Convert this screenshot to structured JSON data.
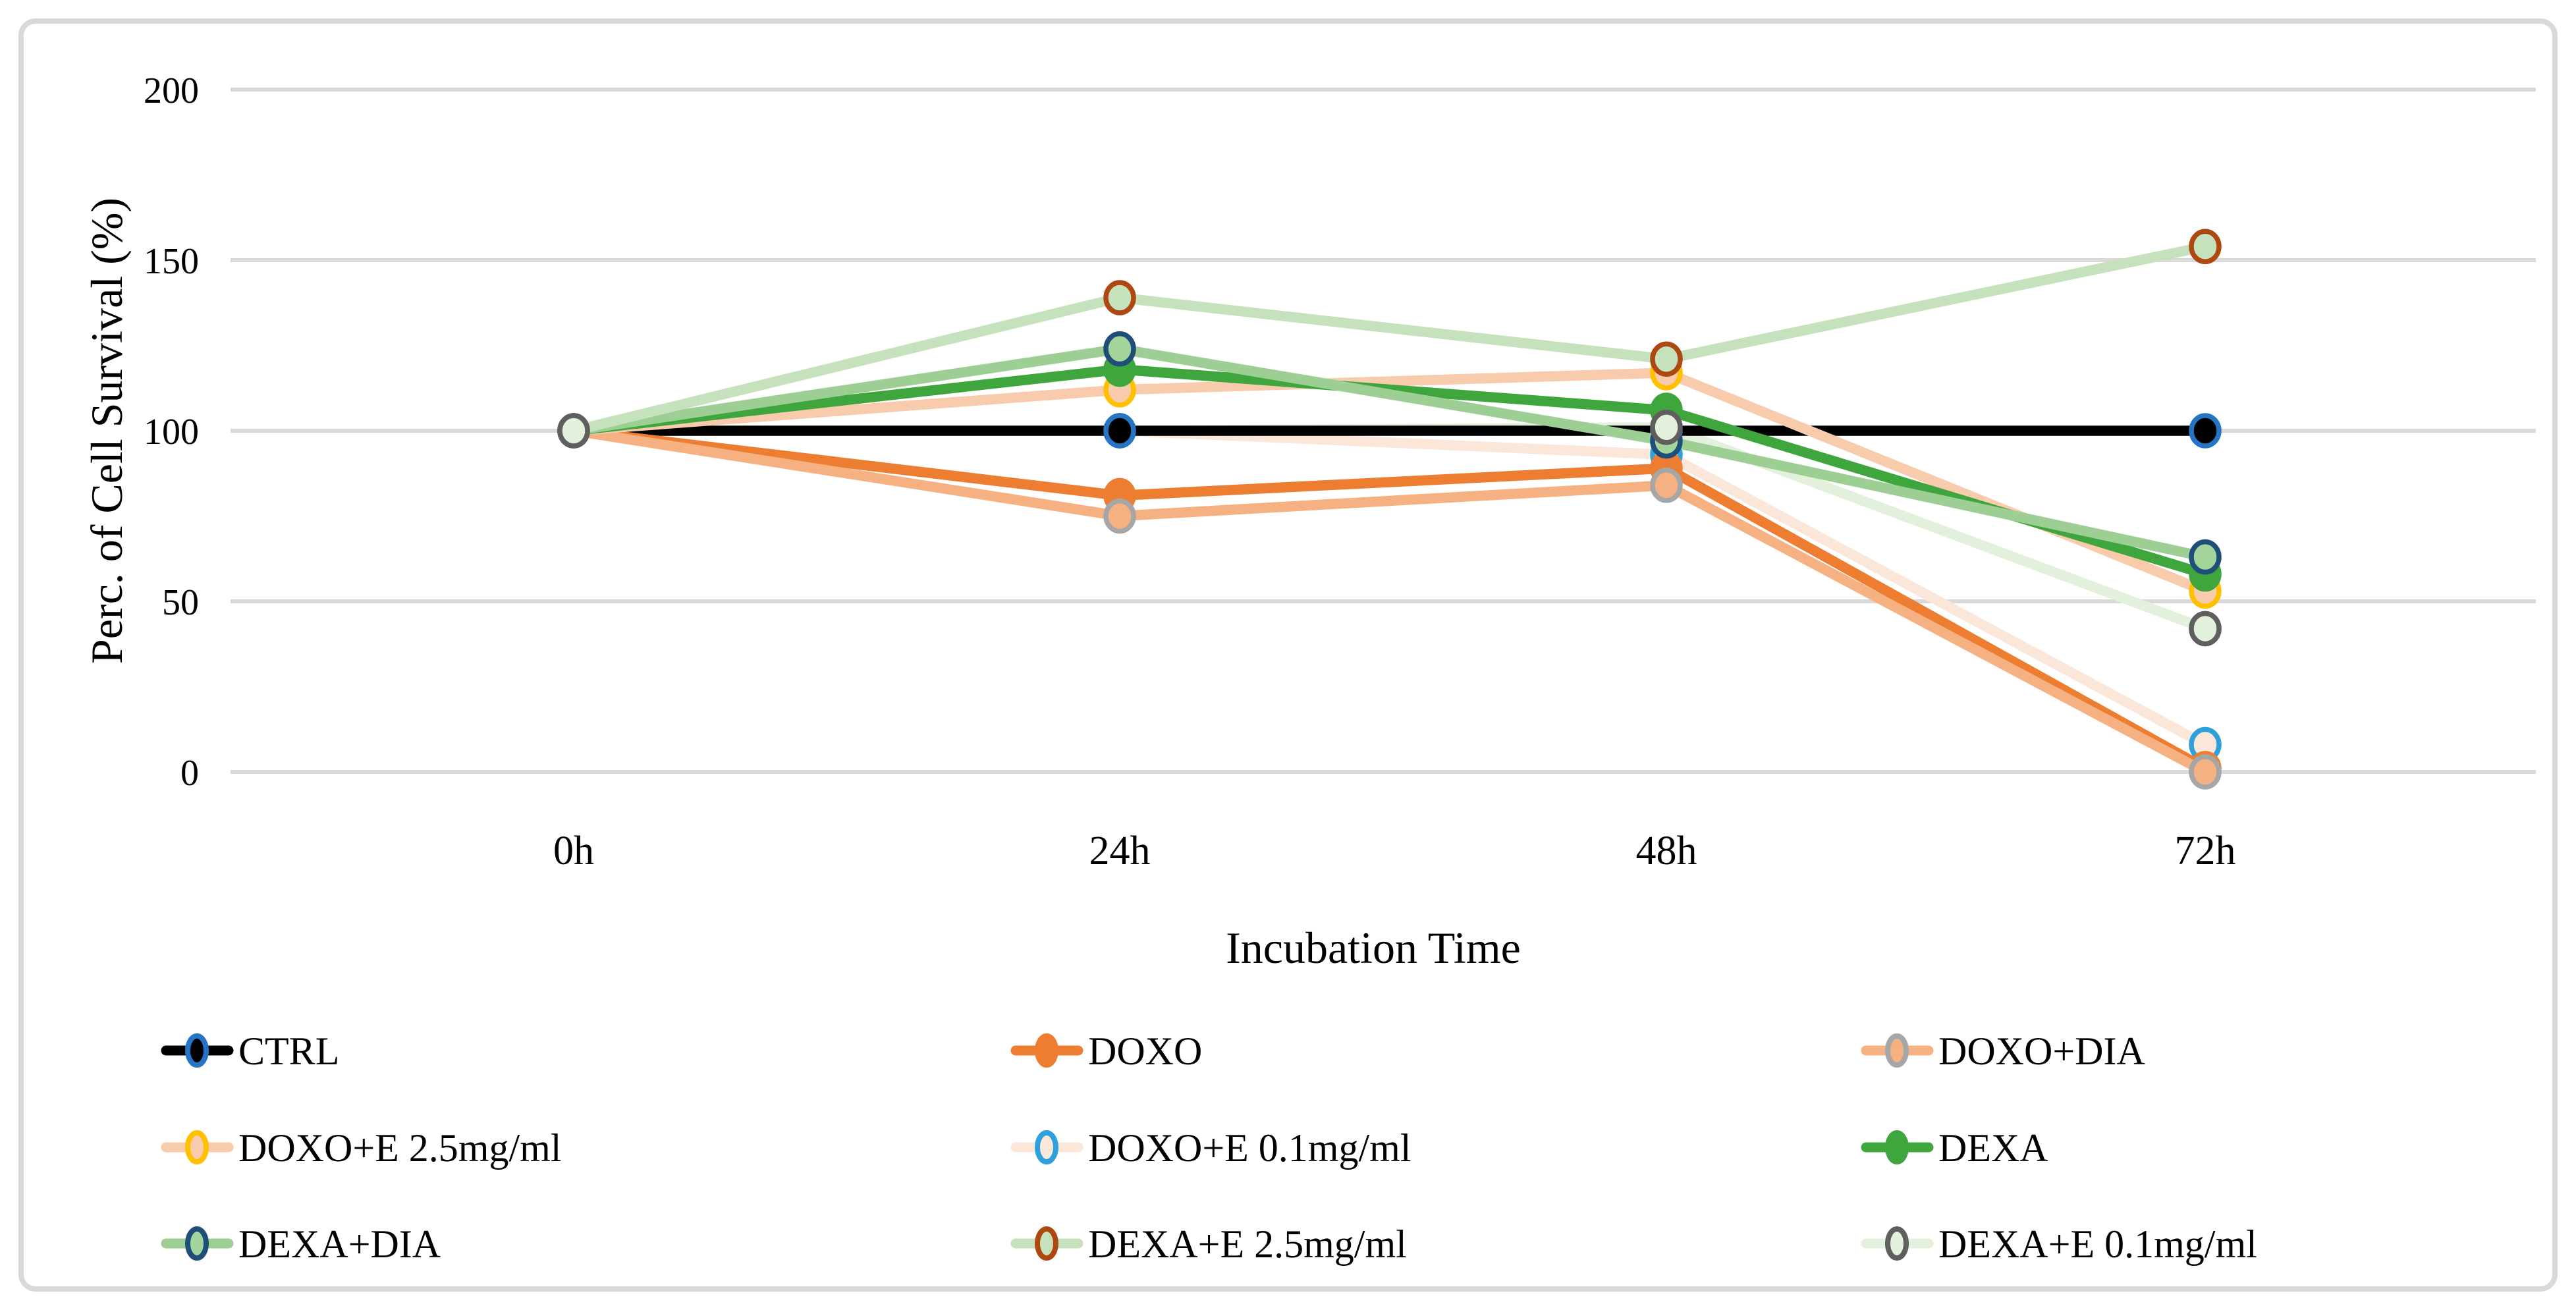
{
  "figure": {
    "background": "#FFFFFF",
    "border_color": "#D9D9D9",
    "gridline_color": "#D9D9D9"
  },
  "chart_data": {
    "type": "line",
    "title": "",
    "xlabel": "Incubation Time",
    "ylabel": "Perc. of Cell Survival (%)",
    "categories": [
      "0h",
      "24h",
      "48h",
      "72h"
    ],
    "y_ticks": [
      0,
      50,
      100,
      150,
      200
    ],
    "ylim": [
      0,
      200
    ],
    "grid": true,
    "legend_position": "bottom",
    "legend_columns": 3,
    "series": [
      {
        "name": "CTRL",
        "values": [
          100,
          100,
          100,
          100
        ],
        "line_color": "#000000",
        "marker_fill": "#000000",
        "marker_ring": "#2674C5"
      },
      {
        "name": "DOXO",
        "values": [
          100,
          81,
          89,
          1
        ],
        "line_color": "#ED7D31",
        "marker_fill": "#ED7D31",
        "marker_ring": "#ED7D31"
      },
      {
        "name": "DOXO+DIA",
        "values": [
          100,
          75,
          84,
          0
        ],
        "line_color": "#F6B183",
        "marker_fill": "#F6B183",
        "marker_ring": "#A6A6A6"
      },
      {
        "name": "DOXO+E 2.5mg/ml",
        "values": [
          100,
          112,
          117,
          53
        ],
        "line_color": "#F8CBAD",
        "marker_fill": "#F8CBAD",
        "marker_ring": "#FFC000"
      },
      {
        "name": "DOXO+E 0.1mg/ml",
        "values": [
          100,
          100,
          93,
          8
        ],
        "line_color": "#FBE7DA",
        "marker_fill": "#FBE7DA",
        "marker_ring": "#2EA1DC"
      },
      {
        "name": "DEXA",
        "values": [
          100,
          118,
          106,
          58
        ],
        "line_color": "#3EA63D",
        "marker_fill": "#3EA63D",
        "marker_ring": "#3EA63D"
      },
      {
        "name": "DEXA+DIA",
        "values": [
          100,
          124,
          97,
          63
        ],
        "line_color": "#9DCF94",
        "marker_fill": "#A3D49A",
        "marker_ring": "#1F4E79"
      },
      {
        "name": "DEXA+E 2.5mg/ml",
        "values": [
          100,
          139,
          121,
          154
        ],
        "line_color": "#C6E2BC",
        "marker_fill": "#C6E2BC",
        "marker_ring": "#AE4813"
      },
      {
        "name": "DEXA+E 0.1mg/ml",
        "values": [
          100,
          100,
          101,
          42
        ],
        "line_color": "#E3F0DC",
        "marker_fill": "#E3F0DC",
        "marker_ring": "#5F5F5F"
      }
    ]
  }
}
